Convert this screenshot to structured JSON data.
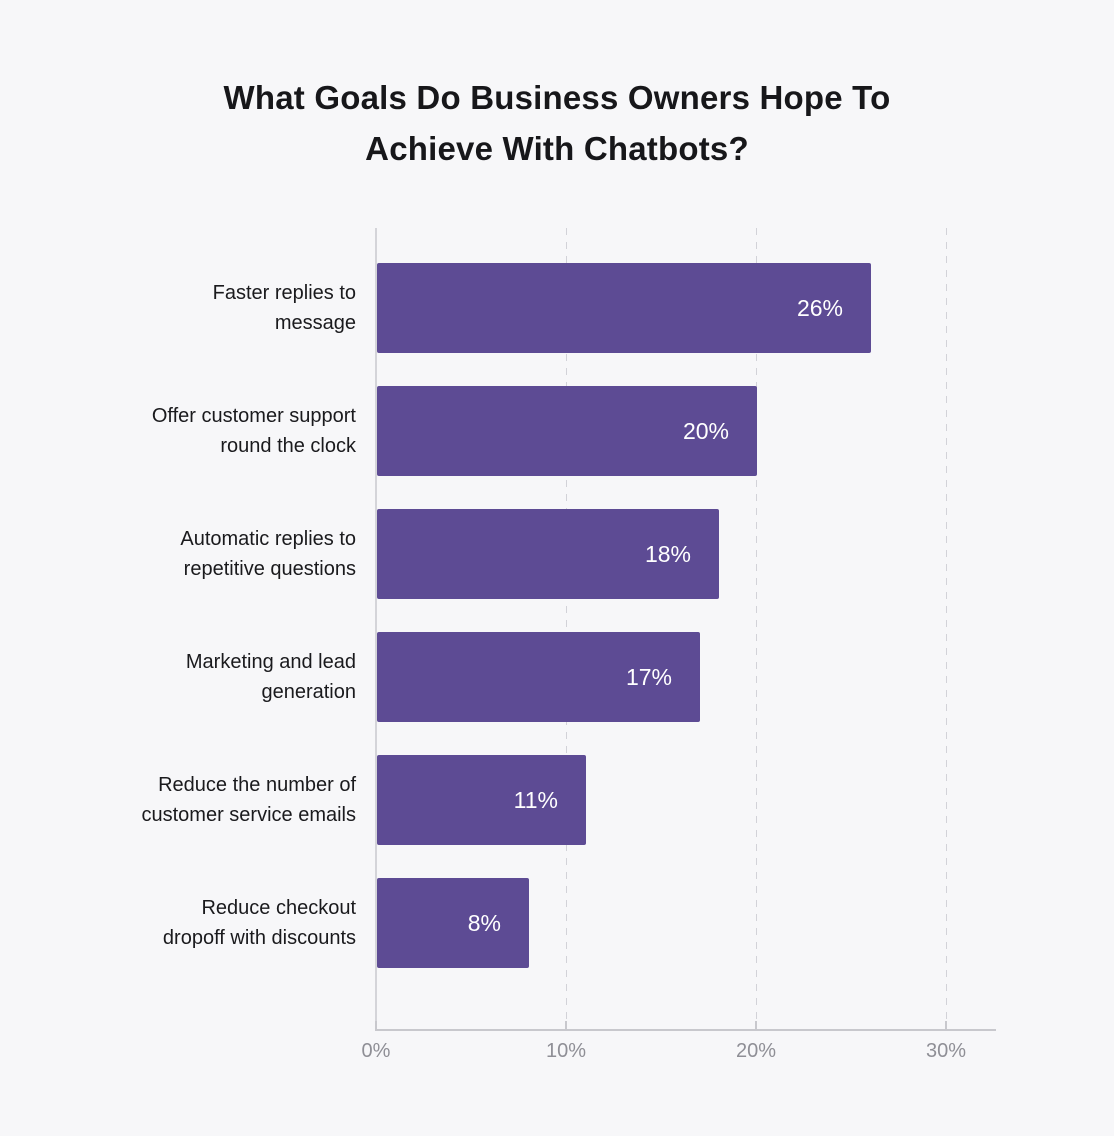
{
  "header": {
    "line1": "What Goals Do Business Owners Hope To",
    "line2": "Achieve With Chatbots?"
  },
  "chart_data": {
    "type": "bar",
    "orientation": "horizontal",
    "title": "What Goals Do Business Owners Hope To Achieve With Chatbots?",
    "xlabel": "",
    "ylabel": "",
    "xlim": [
      0,
      32.6
    ],
    "grid": "vertical-dashed",
    "legend": "none",
    "bar_color": "#5D4B94",
    "value_label_color": "#FFFFFF",
    "categories": [
      "Faster replies to message",
      "Offer customer support round the clock",
      "Automatic replies to repetitive questions",
      "Marketing and lead generation",
      "Reduce the number of customer service emails",
      "Reduce checkout dropoff with discounts"
    ],
    "values": [
      26,
      20,
      18,
      17,
      11,
      8
    ],
    "rows": [
      {
        "label": "Faster replies to message",
        "label_lines": [
          "Faster replies to",
          "message"
        ],
        "value": 26,
        "value_label": "26%"
      },
      {
        "label": "Offer customer support round the clock",
        "label_lines": [
          "Offer customer support",
          "round the clock"
        ],
        "value": 20,
        "value_label": "20%"
      },
      {
        "label": "Automatic replies to repetitive questions",
        "label_lines": [
          "Automatic replies to",
          "repetitive questions"
        ],
        "value": 18,
        "value_label": "18%"
      },
      {
        "label": "Marketing and lead generation",
        "label_lines": [
          "Marketing and lead",
          "generation"
        ],
        "value": 17,
        "value_label": "17%"
      },
      {
        "label": "Reduce the number of customer service emails",
        "label_lines": [
          "Reduce the number of",
          "customer service emails"
        ],
        "value": 11,
        "value_label": "11%"
      },
      {
        "label": "Reduce checkout dropoff with discounts",
        "label_lines": [
          "Reduce checkout",
          "dropoff with discounts"
        ],
        "value": 8,
        "value_label": "8%"
      }
    ],
    "x_ticks": [
      {
        "label": "0%",
        "value": 0
      },
      {
        "label": "10%",
        "value": 10
      },
      {
        "label": "20%",
        "value": 20
      },
      {
        "label": "30%",
        "value": 30
      }
    ]
  },
  "colors": {
    "background": "#F7F7F9",
    "bar": "#5D4B94",
    "title_text": "#17171A",
    "category_text": "#1A1A1D",
    "value_text": "#FFFFFF",
    "tick_text": "#8F8F96",
    "axis_line": "#C8C8CD",
    "gridline": "#D2D2D8"
  }
}
